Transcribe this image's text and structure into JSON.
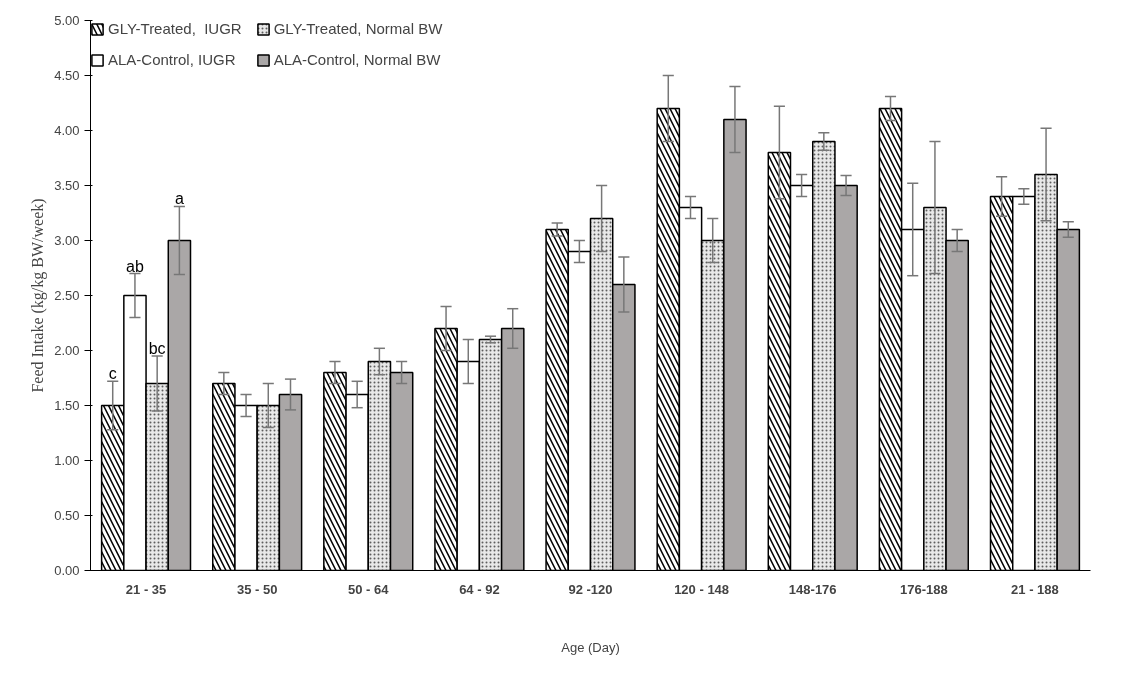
{
  "chart_data": {
    "type": "bar",
    "xlabel": "Age (Day)",
    "ylabel": "Feed Intake (kg/kg BW/week)",
    "categories": [
      "21 - 35",
      "35 - 50",
      "50 - 64",
      "64 - 92",
      "92 -120",
      "120 - 148",
      "148-176",
      "176-188",
      "21 - 188"
    ],
    "series": [
      {
        "name": "GLY-Treated,  IUGR",
        "color": "#000000",
        "values": [
          1.5,
          1.7,
          1.8,
          2.2,
          3.1,
          4.2,
          3.8,
          4.2,
          3.4
        ],
        "errors": [
          0.22,
          0.1,
          0.1,
          0.2,
          0.06,
          0.3,
          0.42,
          0.11,
          0.18
        ]
      },
      {
        "name": "ALA-Control, IUGR",
        "color": "#ffffff",
        "values": [
          2.5,
          1.5,
          1.6,
          1.9,
          2.9,
          3.3,
          3.5,
          3.1,
          3.4
        ],
        "errors": [
          0.2,
          0.1,
          0.12,
          0.2,
          0.1,
          0.1,
          0.1,
          0.42,
          0.07
        ]
      },
      {
        "name": "GLY-Treated, Normal BW",
        "color": "#e8e8e8",
        "values": [
          1.7,
          1.5,
          1.9,
          2.1,
          3.2,
          3.0,
          3.9,
          3.3,
          3.6
        ],
        "errors": [
          0.25,
          0.2,
          0.12,
          0.03,
          0.3,
          0.2,
          0.08,
          0.6,
          0.42
        ]
      },
      {
        "name": "ALA-Control, Normal BW",
        "color": "#aaa7a7",
        "values": [
          3.0,
          1.6,
          1.8,
          2.2,
          2.6,
          4.1,
          3.5,
          3.0,
          3.1
        ],
        "errors": [
          0.31,
          0.14,
          0.1,
          0.18,
          0.25,
          0.3,
          0.09,
          0.1,
          0.07
        ]
      }
    ],
    "ylim": [
      0,
      5
    ],
    "yticks": [
      {
        "value": 0,
        "label": "0.00"
      },
      {
        "value": 0.5,
        "label": "0.50"
      },
      {
        "value": 1,
        "label": "1.00"
      },
      {
        "value": 1.5,
        "label": "1.50"
      },
      {
        "value": 2,
        "label": "2.00"
      },
      {
        "value": 2.5,
        "label": "2.50"
      },
      {
        "value": 3,
        "label": "3.00"
      },
      {
        "value": 3.5,
        "label": "3.50"
      },
      {
        "value": 4,
        "label": "4.00"
      },
      {
        "value": 4.5,
        "label": "4.50"
      },
      {
        "value": 5,
        "label": "5.00"
      }
    ],
    "annotations": [
      "c",
      "ab",
      "bc",
      "a"
    ],
    "grid": false,
    "legend": "top left"
  }
}
